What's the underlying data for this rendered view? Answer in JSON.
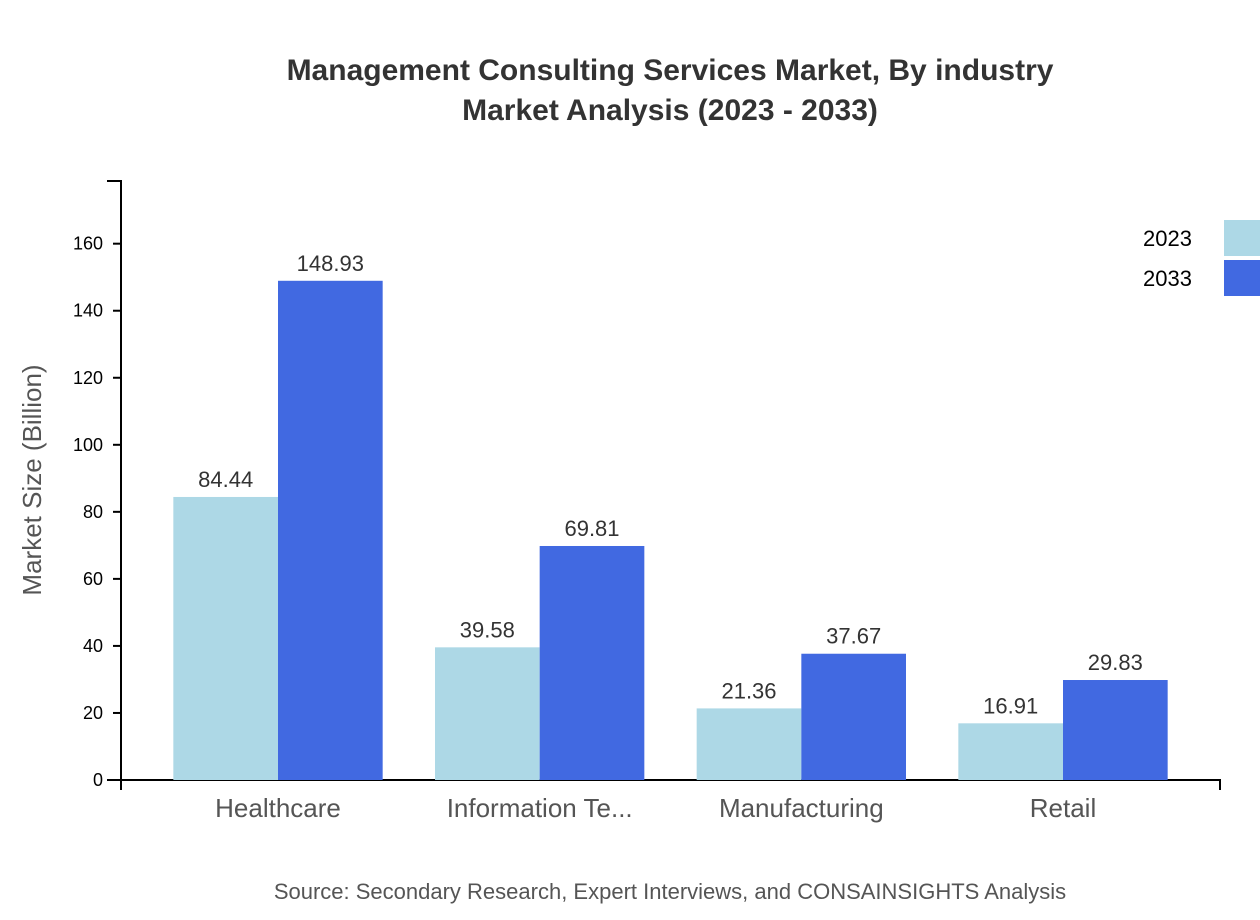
{
  "chart_data": {
    "type": "bar",
    "title": "Management Consulting Services Market, By industry",
    "subtitle": "Market Analysis (2023 - 2033)",
    "xlabel": "",
    "ylabel": "Market Size (Billion)",
    "categories": [
      "Healthcare",
      "Information Te...",
      "Manufacturing",
      "Retail"
    ],
    "series": [
      {
        "name": "2023",
        "color": "#add8e6",
        "values": [
          84.44,
          39.58,
          21.36,
          16.91
        ]
      },
      {
        "name": "2033",
        "color": "#4169e1",
        "values": [
          148.93,
          69.81,
          37.67,
          29.83
        ]
      }
    ],
    "ylim": [
      0,
      178.7
    ],
    "yticks": [
      0,
      20,
      40,
      60,
      80,
      100,
      120,
      140,
      160
    ],
    "grid": false,
    "legend": "top-right",
    "source": "Source: Secondary Research, Expert Interviews, and CONSAINSIGHTS Analysis"
  }
}
